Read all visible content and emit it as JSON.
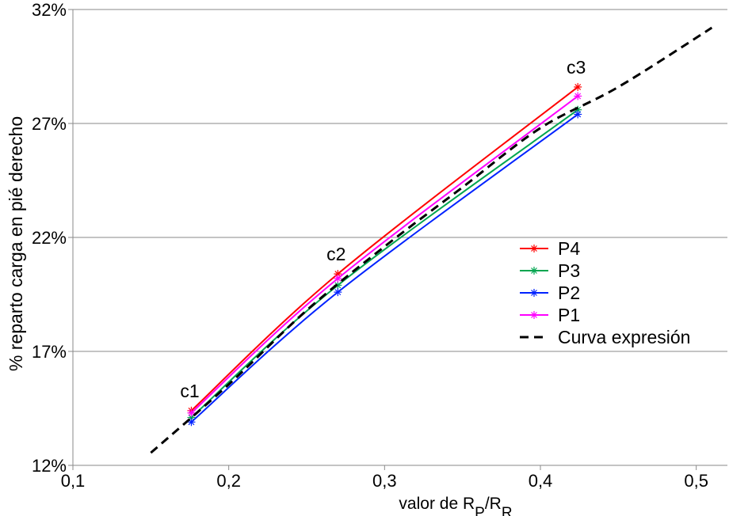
{
  "chart_data": {
    "type": "line",
    "title": "",
    "xlabel": {
      "prefix": "valor de R",
      "sub1": "P",
      "mid": "/R",
      "sub2": "R"
    },
    "ylabel": "% reparto carga en pié derecho",
    "xlim": [
      0.1,
      0.52
    ],
    "ylim": [
      12,
      32
    ],
    "x_ticks": [
      0.1,
      0.2,
      0.3,
      0.4,
      0.5
    ],
    "x_tick_labels": [
      "0,1",
      "0,2",
      "0,3",
      "0,4",
      "0,5"
    ],
    "y_ticks": [
      12,
      17,
      22,
      27,
      32
    ],
    "y_tick_labels": [
      "12%",
      "17%",
      "22%",
      "27%",
      "32%"
    ],
    "grid": "horizontal",
    "legend_position": "center-right",
    "series": [
      {
        "name": "P4",
        "color": "#ff0000",
        "marker": "asterisk",
        "x": [
          0.176,
          0.27,
          0.424
        ],
        "y": [
          14.4,
          20.4,
          28.6
        ]
      },
      {
        "name": "P3",
        "color": "#00a550",
        "marker": "asterisk",
        "x": [
          0.176,
          0.27,
          0.424
        ],
        "y": [
          14.1,
          19.9,
          27.6
        ]
      },
      {
        "name": "P2",
        "color": "#0022ff",
        "marker": "asterisk",
        "x": [
          0.176,
          0.27,
          0.424
        ],
        "y": [
          13.9,
          19.6,
          27.4
        ]
      },
      {
        "name": "P1",
        "color": "#ff00ff",
        "marker": "asterisk",
        "x": [
          0.176,
          0.27,
          0.424
        ],
        "y": [
          14.3,
          20.2,
          28.2
        ]
      },
      {
        "name": "Curva expresión",
        "color": "#000000",
        "dashed": true,
        "x": [
          0.15,
          0.2,
          0.25,
          0.3,
          0.35,
          0.4,
          0.45,
          0.51
        ],
        "y": [
          12.55,
          15.55,
          18.8,
          21.6,
          24.2,
          26.8,
          28.6,
          31.2
        ]
      }
    ],
    "annotations": [
      {
        "text": "c1",
        "x": 0.176,
        "y": 14.4
      },
      {
        "text": "c2",
        "x": 0.27,
        "y": 20.4
      },
      {
        "text": "c3",
        "x": 0.424,
        "y": 28.6
      }
    ]
  }
}
